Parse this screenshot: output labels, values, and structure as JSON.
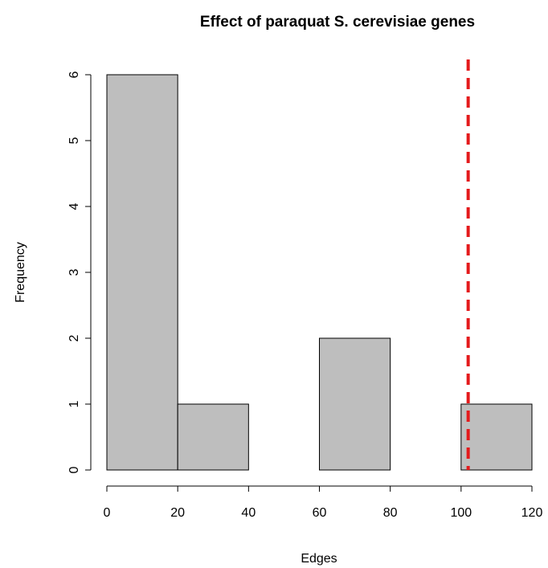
{
  "chart_data": {
    "type": "bar",
    "title": "Effect of paraquat S. cerevisiae genes",
    "xlabel": "Edges",
    "ylabel": "Frequency",
    "bins": [
      {
        "from": 0,
        "to": 20,
        "count": 6
      },
      {
        "from": 20,
        "to": 40,
        "count": 1
      },
      {
        "from": 40,
        "to": 60,
        "count": 0
      },
      {
        "from": 60,
        "to": 80,
        "count": 2
      },
      {
        "from": 80,
        "to": 100,
        "count": 0
      },
      {
        "from": 100,
        "to": 120,
        "count": 1
      }
    ],
    "xlim": [
      0,
      120
    ],
    "ylim": [
      0,
      6
    ],
    "x_ticks": [
      0,
      20,
      40,
      60,
      80,
      100,
      120
    ],
    "y_ticks": [
      0,
      1,
      2,
      3,
      4,
      5,
      6
    ],
    "reference_line": {
      "x": 102,
      "color": "#e41a1c",
      "style": "dashed"
    },
    "bar_color": "#bebebe",
    "grid": false
  }
}
